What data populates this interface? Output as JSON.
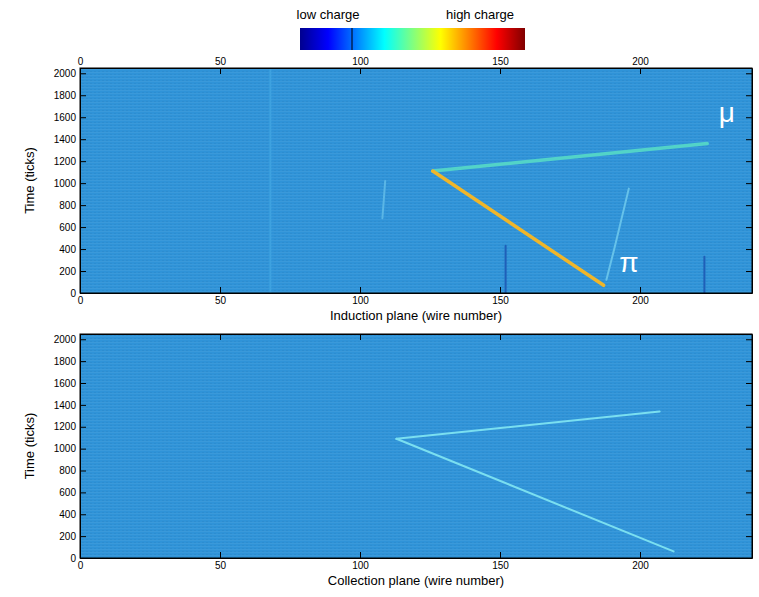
{
  "chart_data": [
    {
      "type": "track_display",
      "colorbar": {
        "low_label": "low charge",
        "high_label": "high charge"
      },
      "xlabel": "Induction plane (wire number)",
      "ylabel": "Time (ticks)",
      "xlim": [
        0,
        240
      ],
      "ylim": [
        0,
        2048
      ],
      "xticks": [
        0,
        50,
        100,
        150,
        200
      ],
      "x2ticks": [
        0,
        50,
        100,
        150,
        200
      ],
      "yticks": [
        0,
        200,
        400,
        600,
        800,
        1000,
        1200,
        1400,
        1600,
        1800,
        2000
      ],
      "color": "#2f93d8",
      "series": [
        {
          "x": [
            126,
            224
          ],
          "y": [
            1110,
            1360
          ],
          "color": "#52d3c8",
          "line_style": "thick"
        },
        {
          "x": [
            126,
            187
          ],
          "y": [
            1110,
            70
          ],
          "color": "#f0b62a",
          "line_style": "thick"
        },
        {
          "x": [
            188,
            191,
            196
          ],
          "y": [
            120,
            420,
            950
          ],
          "color": "#66c2ea",
          "line_style": "thin"
        },
        {
          "x": [
            108,
            109
          ],
          "y": [
            680,
            1020
          ],
          "color": "#5ab6e6",
          "line_style": "thin"
        },
        {
          "x": [
            152,
            152
          ],
          "y": [
            0,
            430
          ],
          "color": "#1f5fb8",
          "line_style": "thin"
        },
        {
          "x": [
            223,
            223
          ],
          "y": [
            0,
            330
          ],
          "color": "#1f5fb8",
          "line_style": "thin"
        },
        {
          "x": [
            68,
            68
          ],
          "y": [
            0,
            2048
          ],
          "color": "#3ea2e0",
          "line_style": "thin"
        }
      ],
      "annotations": [
        {
          "text": "μ",
          "x": 231,
          "y": 1620
        },
        {
          "text": "π",
          "x": 196,
          "y": 260
        }
      ]
    },
    {
      "type": "track_display",
      "xlabel": "Collection plane (wire number)",
      "ylabel": "Time (ticks)",
      "xlim": [
        0,
        240
      ],
      "ylim": [
        0,
        2048
      ],
      "xticks": [
        0,
        50,
        100,
        150,
        200
      ],
      "yticks": [
        0,
        200,
        400,
        600,
        800,
        1000,
        1200,
        1400,
        1600,
        1800,
        2000
      ],
      "color": "#2f93d8",
      "series": [
        {
          "x": [
            113,
            207
          ],
          "y": [
            1090,
            1340
          ],
          "color": "#7adff0",
          "line_style": "thin"
        },
        {
          "x": [
            113,
            212
          ],
          "y": [
            1090,
            60
          ],
          "color": "#7adff0",
          "line_style": "thin"
        }
      ]
    }
  ]
}
